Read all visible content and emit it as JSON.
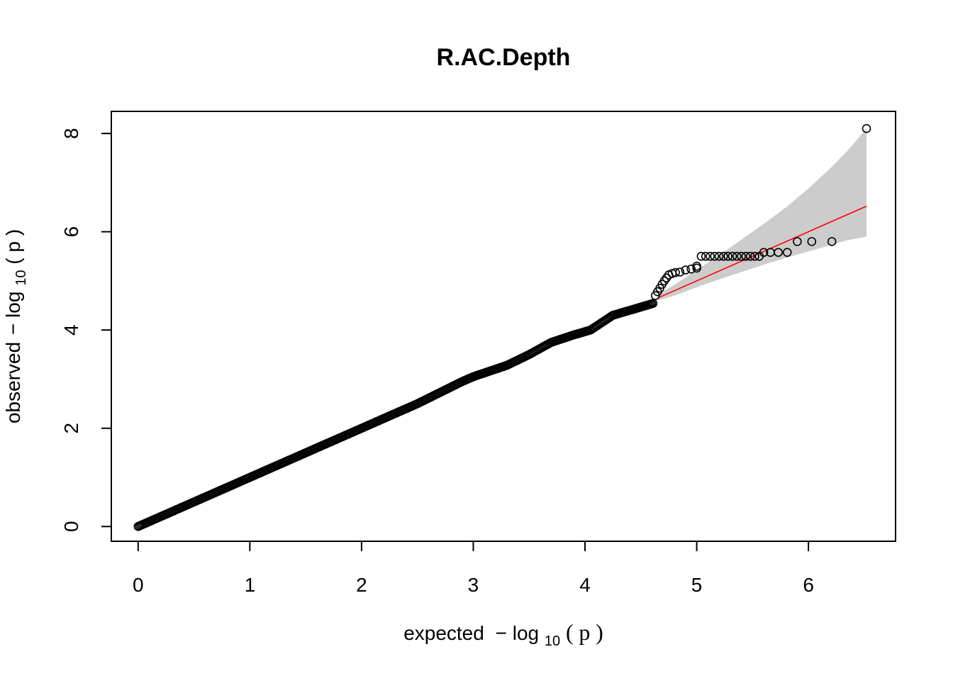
{
  "chart_data": {
    "type": "scatter",
    "title": "R.AC.Depth",
    "xlabel": {
      "prefix": "expected",
      "minus": "−",
      "log": "log",
      "sub": "10",
      "open": "(",
      "var": "p",
      "close": ")"
    },
    "ylabel": {
      "prefix": "observed",
      "minus": "−",
      "log": "log",
      "sub": "10",
      "open": "(",
      "var": "p",
      "close": ")"
    },
    "xlim": [
      -0.24,
      6.78
    ],
    "ylim": [
      -0.3,
      8.45
    ],
    "xticks": [
      0,
      1,
      2,
      3,
      4,
      5,
      6
    ],
    "yticks": [
      0,
      2,
      4,
      6,
      8
    ],
    "grid": false,
    "legend": "none",
    "colors": {
      "points": "#000000",
      "reference_line": "#ff0000",
      "confidence_band": "#cccccc"
    },
    "reference_line": {
      "x": [
        4.65,
        6.52
      ],
      "y": [
        4.65,
        6.52
      ]
    },
    "confidence_band": {
      "x": [
        4.65,
        4.8,
        5.0,
        5.2,
        5.4,
        5.6,
        5.8,
        6.0,
        6.2,
        6.35,
        6.52
      ],
      "upper": [
        4.72,
        4.92,
        5.22,
        5.52,
        5.84,
        6.16,
        6.5,
        6.88,
        7.3,
        7.65,
        8.1
      ],
      "lower": [
        4.6,
        4.7,
        4.87,
        5.03,
        5.18,
        5.33,
        5.47,
        5.6,
        5.73,
        5.83,
        5.9
      ]
    },
    "points_dense": {
      "x": [
        0.0,
        0.5,
        1.0,
        1.5,
        2.0,
        2.5,
        2.9,
        3.0,
        3.3,
        3.5,
        3.7,
        3.9,
        4.05,
        4.25,
        4.4,
        4.55,
        4.62
      ],
      "y": [
        0.0,
        0.5,
        1.0,
        1.5,
        2.0,
        2.5,
        2.95,
        3.05,
        3.28,
        3.5,
        3.75,
        3.9,
        4.0,
        4.3,
        4.4,
        4.5,
        4.55
      ]
    },
    "points": {
      "x": [
        4.63,
        4.65,
        4.67,
        4.69,
        4.71,
        4.73,
        4.75,
        4.78,
        4.81,
        4.85,
        4.9,
        4.95,
        5.0,
        5.0,
        5.04,
        5.08,
        5.12,
        5.16,
        5.2,
        5.24,
        5.28,
        5.32,
        5.36,
        5.4,
        5.44,
        5.48,
        5.52,
        5.56,
        5.6,
        5.66,
        5.73,
        5.81,
        5.9,
        6.03,
        6.21,
        6.52
      ],
      "y": [
        4.7,
        4.78,
        4.85,
        4.93,
        5.0,
        5.06,
        5.12,
        5.15,
        5.17,
        5.18,
        5.22,
        5.24,
        5.26,
        5.3,
        5.5,
        5.5,
        5.5,
        5.5,
        5.5,
        5.5,
        5.5,
        5.5,
        5.5,
        5.5,
        5.5,
        5.5,
        5.5,
        5.5,
        5.58,
        5.58,
        5.58,
        5.58,
        5.8,
        5.8,
        5.8,
        8.1
      ]
    }
  }
}
